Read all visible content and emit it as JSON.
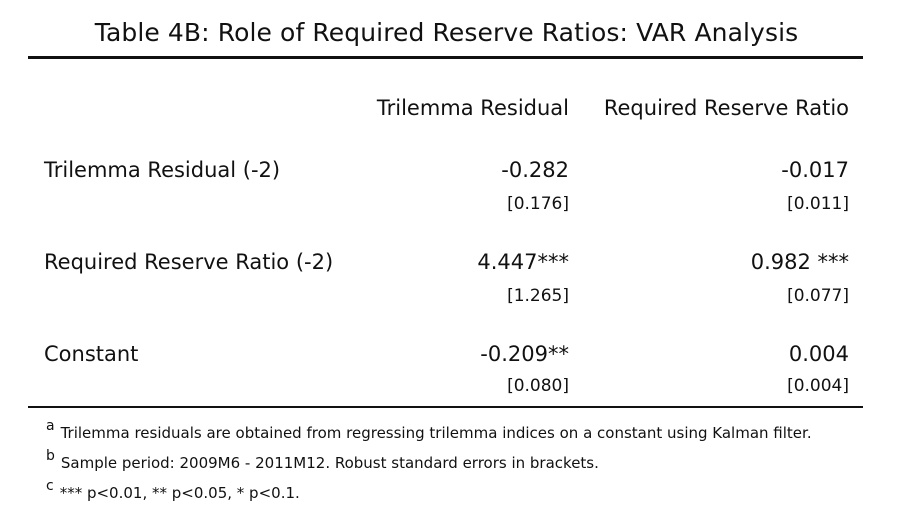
{
  "title": "Table 4B: Role of Required Reserve Ratios: VAR Analysis",
  "columns": [
    "Trilemma Residual",
    "Required Reserve Ratio"
  ],
  "rows": [
    {
      "label": "Trilemma Residual (-2)",
      "c1": "-0.282",
      "c1_se": "[0.176]",
      "c2": "-0.017",
      "c2_se": "[0.011]"
    },
    {
      "label": "Required Reserve Ratio (-2)",
      "c1": "4.447***",
      "c1_se": "[1.265]",
      "c2": "0.982 ***",
      "c2_se": "[0.077]"
    },
    {
      "label": "Constant",
      "c1": "-0.209**",
      "c1_se": "[0.080]",
      "c2": "0.004",
      "c2_se": "[0.004]"
    }
  ],
  "notes": [
    {
      "mark": "a",
      "text": "Trilemma residuals are obtained from regressing trilemma indices on a constant using Kalman filter."
    },
    {
      "mark": "b",
      "text": "Sample period: 2009M6 - 2011M12. Robust standard errors in brackets."
    },
    {
      "mark": "c",
      "text": "*** p<0.01, ** p<0.05, * p<0.1."
    }
  ]
}
